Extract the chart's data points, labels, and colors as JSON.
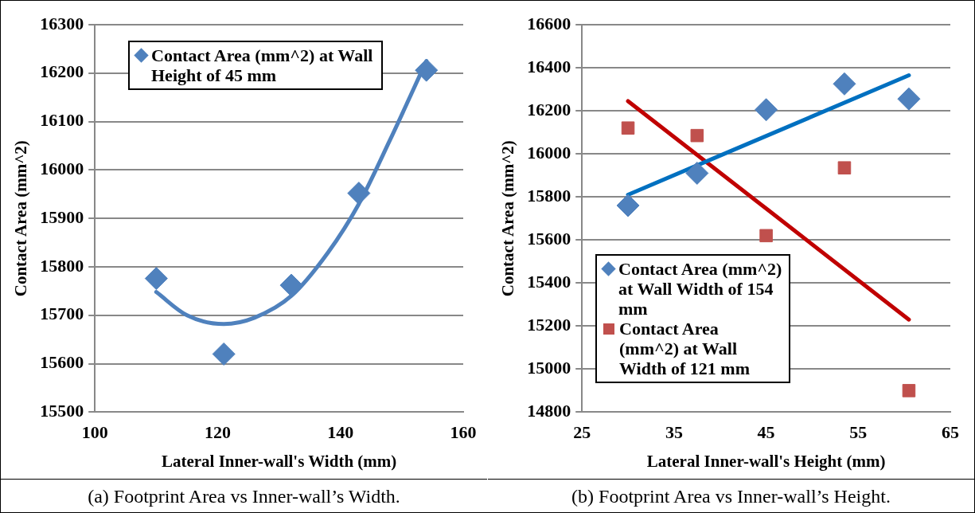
{
  "chart_data": [
    {
      "type": "scatter",
      "xlabel": "Lateral Inner-wall's Width (mm)",
      "ylabel": "Contact Area (mm^2)",
      "xlim": [
        100,
        160
      ],
      "xticks": [
        100,
        120,
        140,
        160
      ],
      "ylim": [
        15500,
        16300
      ],
      "yticks": [
        15500,
        15600,
        15700,
        15800,
        15900,
        16000,
        16100,
        16200,
        16300
      ],
      "grid": "y",
      "legend": "top left",
      "annotations": [
        "(a) Footprint Area vs Inner-wall’s Width."
      ],
      "series": [
        {
          "name": "Contact Area (mm^2) at Wall Height of 45 mm",
          "color": "#4f81bd",
          "marker": "diamond",
          "x": [
            110,
            121,
            132,
            143,
            154
          ],
          "values": [
            15776,
            15620,
            15762,
            15952,
            16206
          ]
        },
        {
          "type": "line",
          "color": "#4f81bd",
          "marker": "none",
          "x": [
            110,
            115,
            121,
            126,
            132,
            138,
            143,
            148,
            154
          ],
          "values": [
            15748,
            15700,
            15682,
            15695,
            15740,
            15830,
            15930,
            16060,
            16225
          ]
        }
      ]
    },
    {
      "type": "scatter",
      "xlabel": "Lateral Inner-wall's Height (mm)",
      "ylabel": "Contact Area (mm^2)",
      "xlim": [
        25,
        65
      ],
      "xticks": [
        25,
        35,
        45,
        55,
        65
      ],
      "ylim": [
        14800,
        16600
      ],
      "yticks": [
        14800,
        15000,
        15200,
        15400,
        15600,
        15800,
        16000,
        16200,
        16400,
        16600
      ],
      "grid": "y",
      "legend": "bottom left",
      "annotations": [
        "(b) Footprint Area vs Inner-wall’s Height."
      ],
      "series": [
        {
          "name": "Contact Area (mm^2) at Wall Width of 154 mm",
          "color": "#4f81bd",
          "marker": "diamond",
          "x": [
            30,
            37.5,
            45,
            53.5,
            60.5
          ],
          "values": [
            15760,
            15910,
            16205,
            16325,
            16255
          ]
        },
        {
          "name": "Contact Area (mm^2) at Wall Width of 121 mm",
          "color": "#c0504d",
          "marker": "square",
          "x": [
            30,
            37.5,
            45,
            53.5,
            60.5
          ],
          "values": [
            16120,
            16085,
            15620,
            15935,
            14900
          ]
        },
        {
          "type": "line",
          "color": "#0070c0",
          "marker": "none",
          "x": [
            30,
            60.5
          ],
          "values": [
            15810,
            16365
          ]
        },
        {
          "type": "line",
          "color": "#c00000",
          "marker": "none",
          "x": [
            30,
            60.5
          ],
          "values": [
            16245,
            15230
          ]
        }
      ]
    }
  ]
}
